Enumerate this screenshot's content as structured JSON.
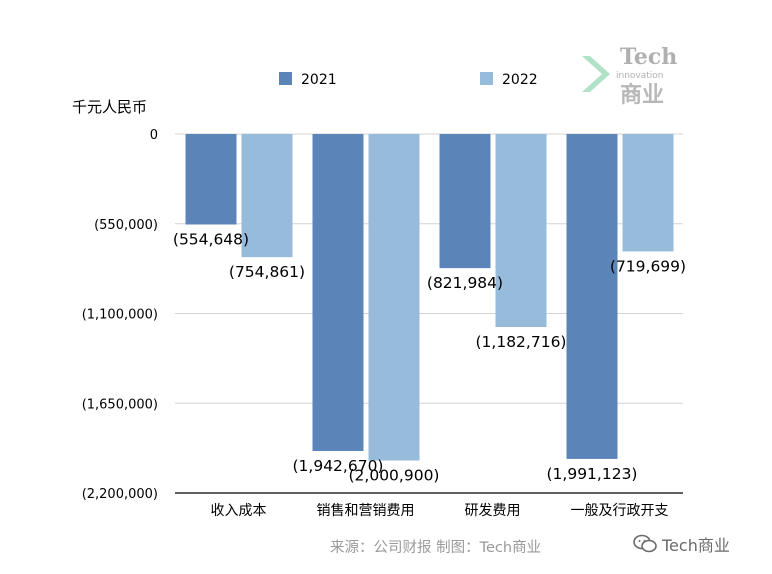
{
  "chart_data": {
    "type": "bar",
    "ylabel": "千元人民币",
    "categories": [
      "收入成本",
      "销售和营销费用",
      "研发费用",
      "一般及行政开支"
    ],
    "series": [
      {
        "name": "2021",
        "color": "#5b84b8",
        "values": [
          -554648,
          -1942670,
          -821984,
          -1991123
        ],
        "labels": [
          "(554,648)",
          "(1,942,670)",
          "(821,984)",
          "(1,991,123)"
        ]
      },
      {
        "name": "2022",
        "color": "#97bbdb",
        "values": [
          -754861,
          -2000900,
          -1182716,
          -719699
        ],
        "labels": [
          "(754,861)",
          "(2,000,900)",
          "(1,182,716)",
          "(719,699)"
        ]
      }
    ],
    "ylim": [
      -2200000,
      0
    ],
    "yticks": [
      0,
      -550000,
      -1100000,
      -1650000,
      -2200000
    ],
    "ytick_labels": [
      "0",
      "(550,000)",
      "(1,100,000)",
      "(1,650,000)",
      "(2,200,000)"
    ],
    "grid": true,
    "legend_position": "top"
  },
  "footer": {
    "source": "来源：公司财报 制图：Tech商业",
    "wechat": "Tech商业"
  },
  "logo": {
    "line1": "Tech",
    "line2": "innovation",
    "line3": "商业"
  }
}
